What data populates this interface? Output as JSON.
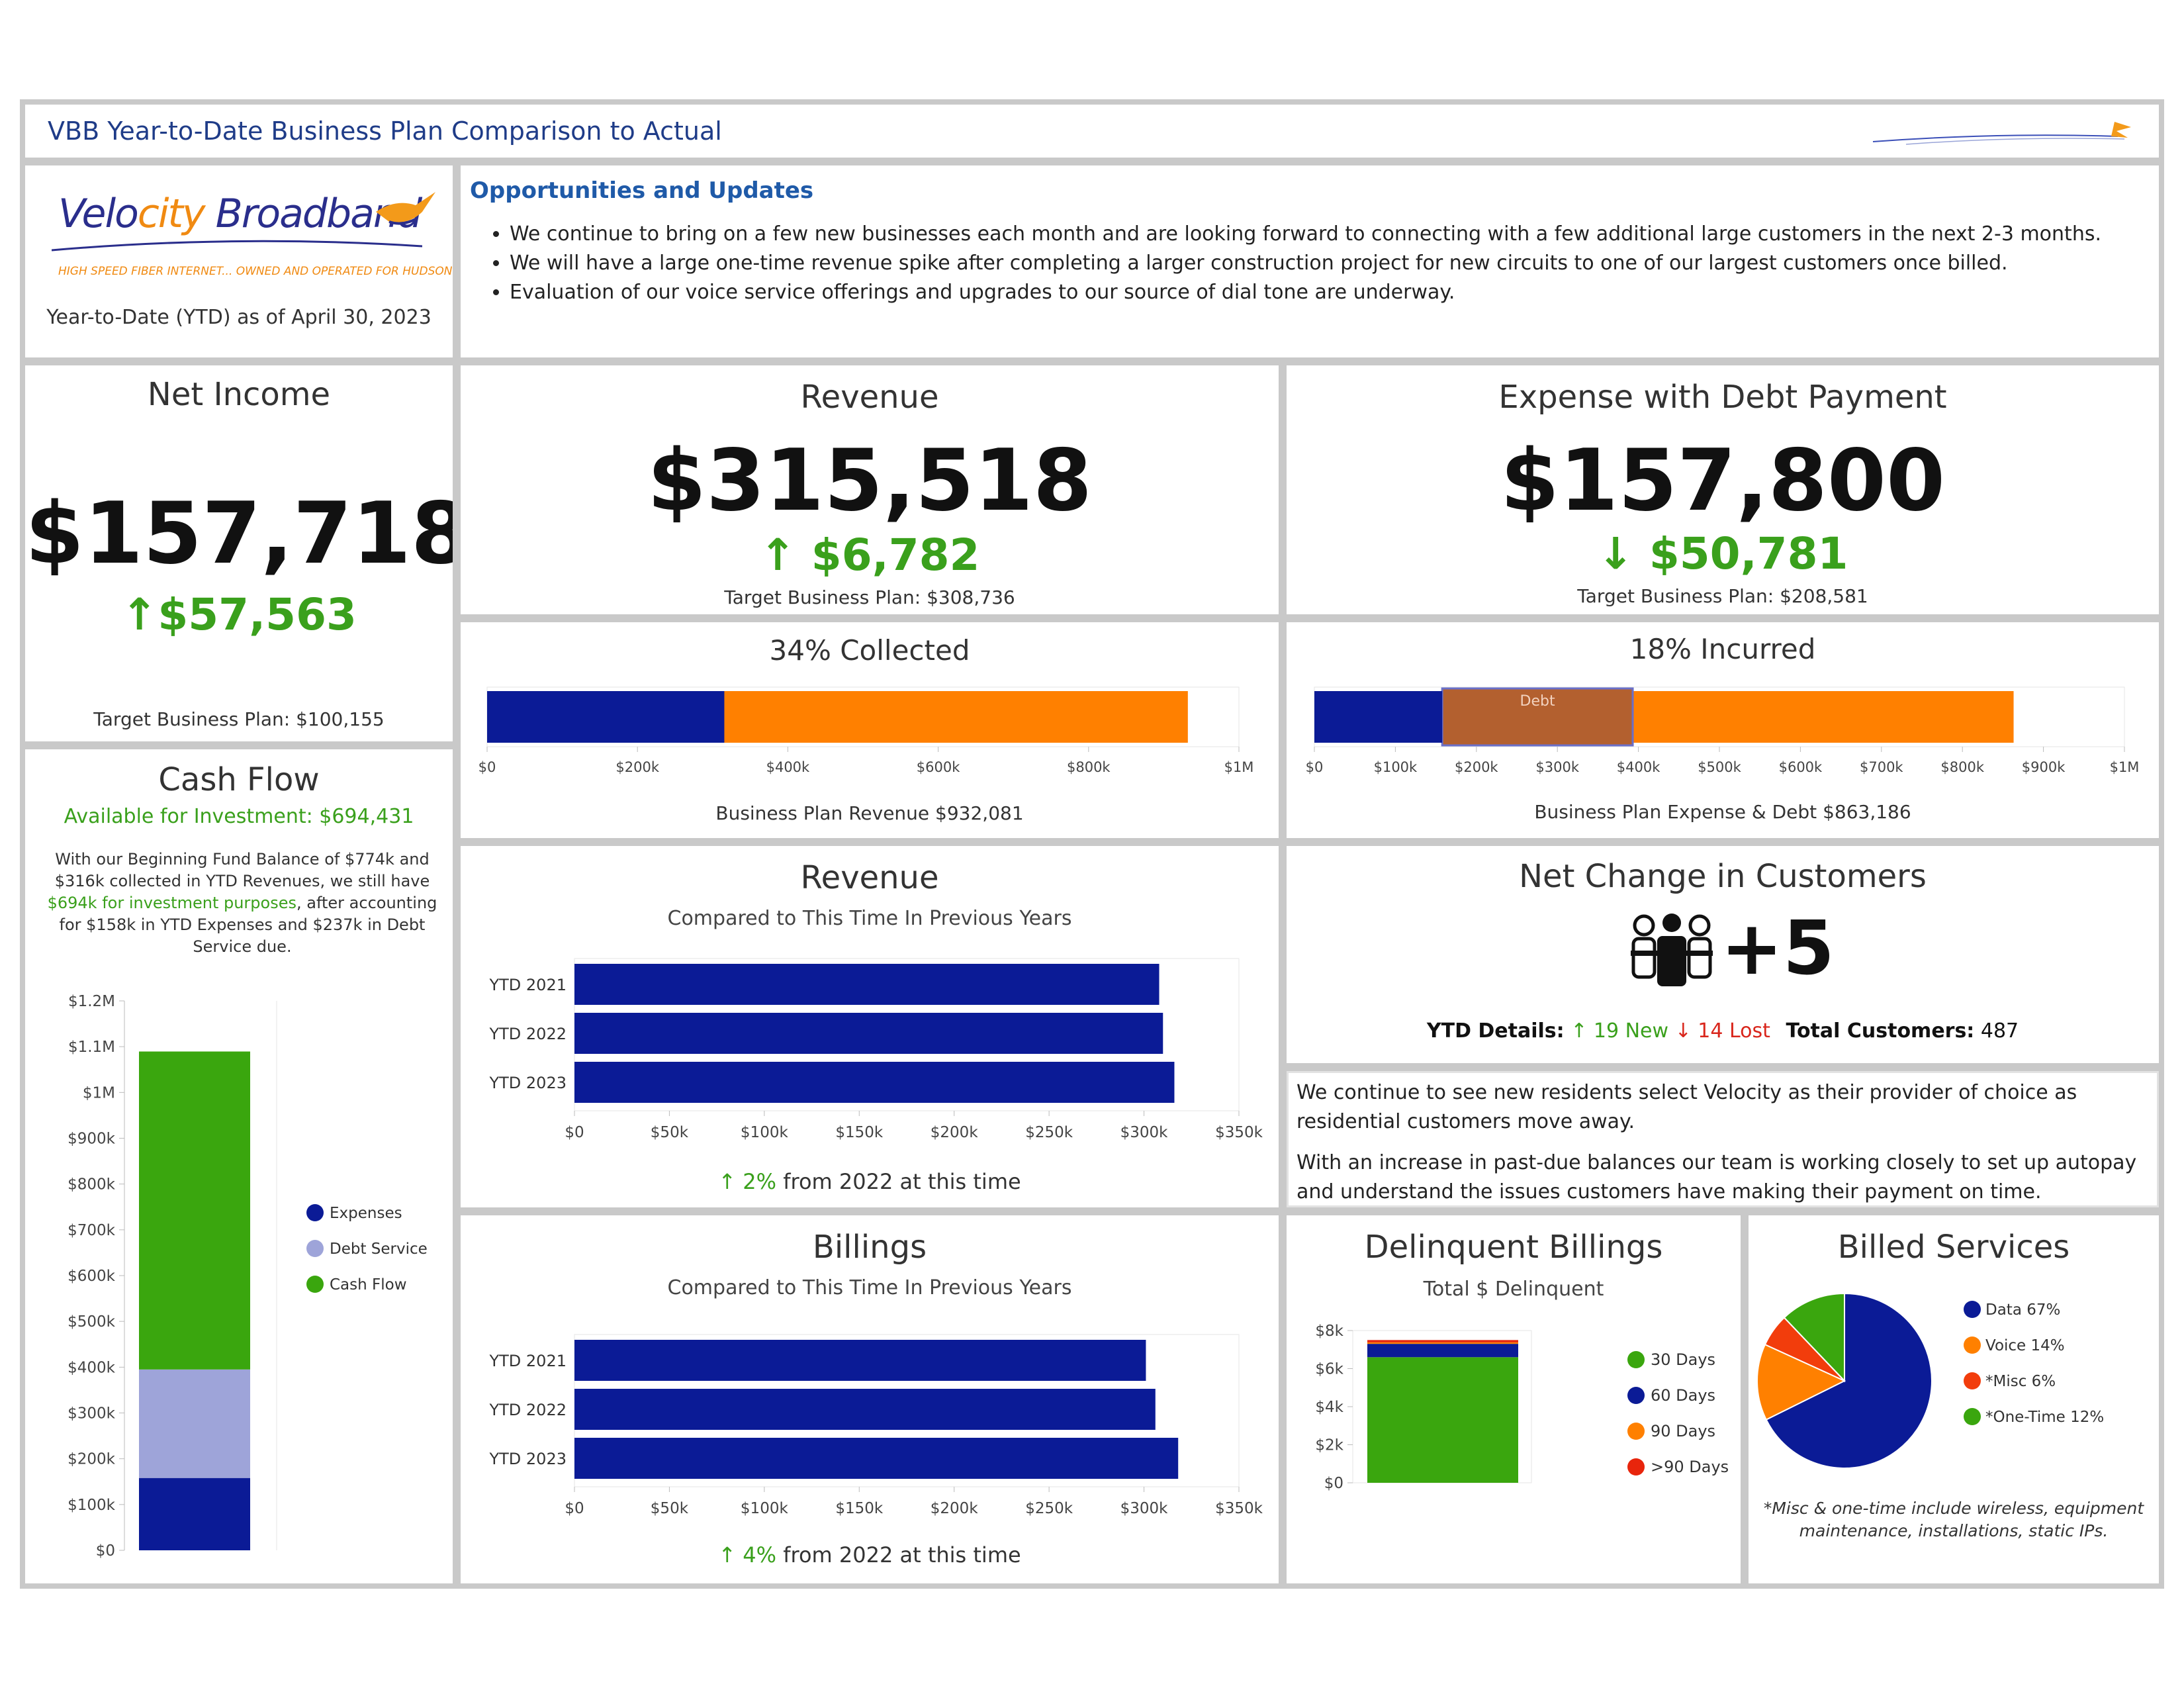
{
  "header": {
    "title": "VBB Year-to-Date Business Plan Comparison to Actual"
  },
  "brand": {
    "name_part1": "Velo",
    "name_part2": "city",
    "name_part3": " Broadband",
    "tagline": "HIGH SPEED FIBER INTERNET... OWNED AND OPERATED FOR HUDSON",
    "ytd_asof": "Year-to-Date (YTD) as of April 30, 2023"
  },
  "updates": {
    "title": "Opportunities and Updates",
    "items": [
      "We continue to bring on a few new businesses each month and are looking forward to connecting with a few additional large customers in the next 2-3 months.",
      "We will have a large one-time revenue spike after completing a larger construction project for new circuits to one of our largest customers once billed.",
      "Evaluation of our voice service offerings and upgrades to our source of dial tone are underway."
    ]
  },
  "net_income": {
    "title": "Net Income",
    "value": "$157,718",
    "delta": "↑$57,563",
    "target": "Target Business Plan: $100,155"
  },
  "revenue": {
    "title": "Revenue",
    "value": "$315,518",
    "delta": "↑ $6,782",
    "target": "Target Business Plan: $308,736"
  },
  "expense": {
    "title": "Expense with Debt Payment",
    "value": "$157,800",
    "delta": "↓ $50,781",
    "target": "Target Business Plan: $208,581"
  },
  "collected": {
    "title": "34% Collected",
    "footer": "Business Plan Revenue $932,081",
    "ticks": [
      "$0",
      "$200k",
      "$400k",
      "$600k",
      "$800k",
      "$1M"
    ],
    "actual": 315518,
    "plan": 932081,
    "max": 1000000,
    "colors": {
      "actual": "#0b1b96",
      "plan": "#ff8000"
    }
  },
  "incurred": {
    "title": "18% Incurred",
    "footer": "Business Plan Expense & Debt $863,186",
    "ticks": [
      "$0",
      "$100k",
      "$200k",
      "$300k",
      "$400k",
      "$500k",
      "$600k",
      "$700k",
      "$800k",
      "$900k",
      "$1M"
    ],
    "actual": 157800,
    "debt_end": 393000,
    "plan": 863186,
    "max": 1000000,
    "debt_label": "Debt",
    "colors": {
      "actual": "#0b1b96",
      "debt": "#b3602f",
      "plan": "#ff8000"
    }
  },
  "cash_flow": {
    "title": "Cash Flow",
    "available": "Available for Investment:  $694,431",
    "desc_part1": "With our Beginning Fund Balance of $774k and $316k collected in YTD Revenues, we still have ",
    "desc_highlight": "$694k for investment purposes",
    "desc_part2": ", after accounting for $158k in YTD Expenses and $237k in Debt Service due."
  },
  "customers": {
    "title": "Net Change in Customers",
    "value": "+5",
    "details_label": "YTD Details:",
    "new_text": "↑ 19 New",
    "lost_text": "↓ 14 Lost",
    "total_label": "Total Customers:",
    "total_value": "487"
  },
  "notes": {
    "p1": "We continue to see new residents select Velocity as their provider of choice as residential customers move away.",
    "p2": "With an increase in past-due balances our team is working closely to set up autopay and understand the issues customers have making their payment on time."
  },
  "revenue_compare": {
    "title": "Revenue",
    "subtitle": "Compared to This Time In Previous Years",
    "footer_arrow": "↑ 2%",
    "footer_text": " from 2022 at this time"
  },
  "billings_compare": {
    "title": "Billings",
    "subtitle": "Compared to This Time In Previous Years",
    "footer_arrow": "↑ 4%",
    "footer_text": " from 2022 at this time"
  },
  "delinquent": {
    "title": "Delinquent Billings",
    "subtitle": "Total $ Delinquent"
  },
  "billed_services": {
    "title": "Billed Services",
    "note": "*Misc & one-time include wireless, equipment maintenance, installations, static IPs."
  },
  "chart_data": [
    {
      "id": "cash_flow",
      "type": "bar",
      "stacked": true,
      "categories": [
        ""
      ],
      "series": [
        {
          "name": "Expenses",
          "values": [
            158000
          ],
          "color": "#0b1b96"
        },
        {
          "name": "Debt Service",
          "values": [
            237000
          ],
          "color": "#9ea4d9"
        },
        {
          "name": "Cash Flow",
          "values": [
            694431
          ],
          "color": "#3aa60e"
        }
      ],
      "ylim": [
        0,
        1200000
      ],
      "yticks": [
        "$0",
        "$100k",
        "$200k",
        "$300k",
        "$400k",
        "$500k",
        "$600k",
        "$700k",
        "$800k",
        "$900k",
        "$1M",
        "$1.1M",
        "$1.2M"
      ],
      "legend": "right"
    },
    {
      "id": "revenue_compare",
      "type": "bar",
      "orientation": "horizontal",
      "categories": [
        "YTD 2021",
        "YTD 2022",
        "YTD 2023"
      ],
      "values": [
        308000,
        310000,
        316000
      ],
      "xlim": [
        0,
        350000
      ],
      "xticks": [
        "$0",
        "$50k",
        "$100k",
        "$150k",
        "$200k",
        "$250k",
        "$300k",
        "$350k"
      ],
      "color": "#0b1b96"
    },
    {
      "id": "billings_compare",
      "type": "bar",
      "orientation": "horizontal",
      "categories": [
        "YTD 2021",
        "YTD 2022",
        "YTD 2023"
      ],
      "values": [
        301000,
        306000,
        318000
      ],
      "xlim": [
        0,
        350000
      ],
      "xticks": [
        "$0",
        "$50k",
        "$100k",
        "$150k",
        "$200k",
        "$250k",
        "$300k",
        "$350k"
      ],
      "color": "#0b1b96"
    },
    {
      "id": "delinquent",
      "type": "bar",
      "stacked": true,
      "categories": [
        ""
      ],
      "series": [
        {
          "name": "30 Days",
          "values": [
            6600
          ],
          "color": "#3aa60e"
        },
        {
          "name": "60 Days",
          "values": [
            700
          ],
          "color": "#0b1b96"
        },
        {
          "name": "90 Days",
          "values": [
            80
          ],
          "color": "#ff8000"
        },
        {
          "name": ">90 Days",
          "values": [
            120
          ],
          "color": "#e8250c"
        }
      ],
      "ylim": [
        0,
        8000
      ],
      "yticks": [
        "$0",
        "$2k",
        "$4k",
        "$6k",
        "$8k"
      ],
      "legend": "right"
    },
    {
      "id": "billed_services",
      "type": "pie",
      "slices": [
        {
          "label": "Data 67%",
          "value": 67,
          "color": "#0b1b96"
        },
        {
          "label": "Voice 14%",
          "value": 14,
          "color": "#ff8000"
        },
        {
          "label": "*Misc 6%",
          "value": 6,
          "color": "#f23d0c"
        },
        {
          "label": "*One-Time 12%",
          "value": 12,
          "color": "#3aa60e"
        }
      ],
      "legend": "right"
    }
  ]
}
